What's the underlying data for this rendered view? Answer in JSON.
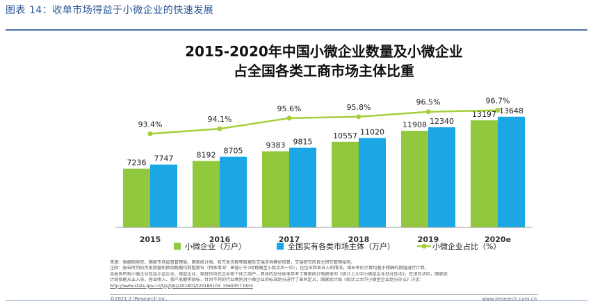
{
  "caption": "图表 14：收单市场得益于小微企业的快速发展",
  "chart_data": {
    "type": "bar+line",
    "title_lines": [
      "2015-2020年中国小微企业数量及小微企业",
      "占全国各类工商市场主体比重"
    ],
    "categories": [
      "2015",
      "2016",
      "2017",
      "2018",
      "2019",
      "2020e"
    ],
    "series": [
      {
        "name": "小微企业（万户）",
        "type": "bar",
        "color": "#92c83e",
        "values": [
          7236,
          8192,
          9383,
          10557,
          11908,
          13197
        ]
      },
      {
        "name": "全国实有各类市场主体（万户）",
        "type": "bar",
        "color": "#1ba6e6",
        "values": [
          7747,
          8705,
          9815,
          11020,
          12340,
          13648
        ]
      },
      {
        "name": "小微企业占比（%）",
        "type": "line",
        "color": "#a6ce39",
        "values": [
          93.4,
          94.1,
          95.6,
          95.8,
          96.5,
          96.7
        ],
        "labels": [
          "93.4%",
          "94.1%",
          "95.6%",
          "95.8%",
          "96.5%",
          "96.7%"
        ]
      }
    ],
    "grid": false,
    "legend": "bottom"
  },
  "notes": [
    "来源：根据国务院、国家市场监督管理局、国家统计局、官方发言稿等数据及艾瑞咨询模型核算，艾瑞研究院自主研究整理绘制。",
    "注释：报告所列的历史数据和预测数据均取整数位（特殊情况：差值小于1时精确至小数点后一位），已包含四舍五入的情况。增长率的计算均基于精确的数值进行计算。",
    "本报告所指小微企业包括小型企业、微型企业、家庭作坊式企业和个体工商户，具体的划分标准参考了国家统计局颁发的《统计上大中小微型企业划分办法》，在该办法中，国家统",
    "计局依据从业人员、营业收入、资产总额等指标，针对不同的行业类别对小微企业的标准划分进行了差异定义，国家统计局《统计上大中小微型企业划分办法》详见：",
    "http://www.stats.gov.cn/tjsj/tjbz/201801/t20180103_1569357.html"
  ],
  "footer": {
    "copyright": "©2021.2 iResearch Inc.",
    "site": "www.iresearch.com.cn"
  }
}
